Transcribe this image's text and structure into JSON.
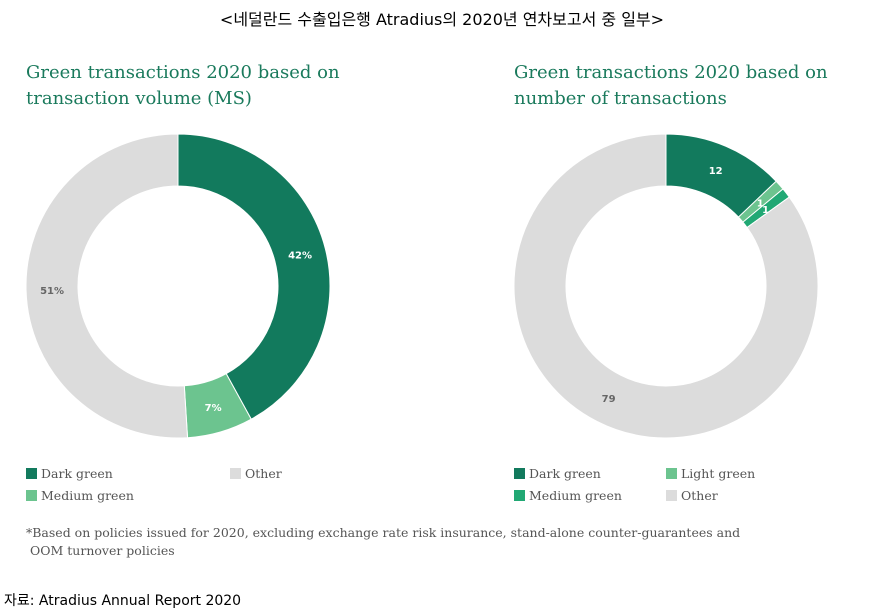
{
  "header": {
    "title": "<네덜란드 수출입은행 Atradius의 2020년 연차보고서 중 일부>"
  },
  "colors": {
    "dark_green": "#127a5d",
    "medium_green_left": "#6cc48f",
    "medium_green_right": "#21a874",
    "light_green": "#6cc48f",
    "other": "#dcdcdc",
    "title_green": "#1a7a5c"
  },
  "chart_data": [
    {
      "type": "pie",
      "title": "Green transactions 2020 based on transaction volume (MS)",
      "slices": [
        {
          "label": "Dark green",
          "value": 42,
          "display": "42%",
          "color": "#127a5d",
          "text_color": "#ffffff"
        },
        {
          "label": "Medium green",
          "value": 7,
          "display": "7%",
          "color": "#6cc48f",
          "text_color": "#ffffff"
        },
        {
          "label": "Other",
          "value": 51,
          "display": "51%",
          "color": "#dcdcdc",
          "text_color": "#666666"
        }
      ],
      "legend": [
        {
          "label": "Dark green",
          "color": "#127a5d"
        },
        {
          "label": "Other",
          "color": "#dcdcdc"
        },
        {
          "label": "Medium green",
          "color": "#6cc48f"
        }
      ]
    },
    {
      "type": "pie",
      "title": "Green transactions 2020 based on number of transactions",
      "slices": [
        {
          "label": "Dark green",
          "value": 12,
          "display": "12",
          "color": "#127a5d",
          "text_color": "#ffffff"
        },
        {
          "label": "Light green",
          "value": 1,
          "display": "1",
          "color": "#6cc48f",
          "text_color": "#ffffff"
        },
        {
          "label": "Medium green",
          "value": 1,
          "display": "1",
          "color": "#21a874",
          "text_color": "#ffffff"
        },
        {
          "label": "Other",
          "value": 79,
          "display": "79",
          "color": "#dcdcdc",
          "text_color": "#666666"
        }
      ],
      "legend": [
        {
          "label": "Dark green",
          "color": "#127a5d"
        },
        {
          "label": "Light green",
          "color": "#6cc48f"
        },
        {
          "label": "Medium green",
          "color": "#21a874"
        },
        {
          "label": "Other",
          "color": "#dcdcdc"
        }
      ]
    }
  ],
  "footnote": {
    "line1": "*Based on policies issued for 2020, excluding exchange rate risk insurance, stand-alone counter-guarantees and",
    "line2": "OOM turnover policies"
  },
  "source": "자료: Atradius Annual Report 2020"
}
